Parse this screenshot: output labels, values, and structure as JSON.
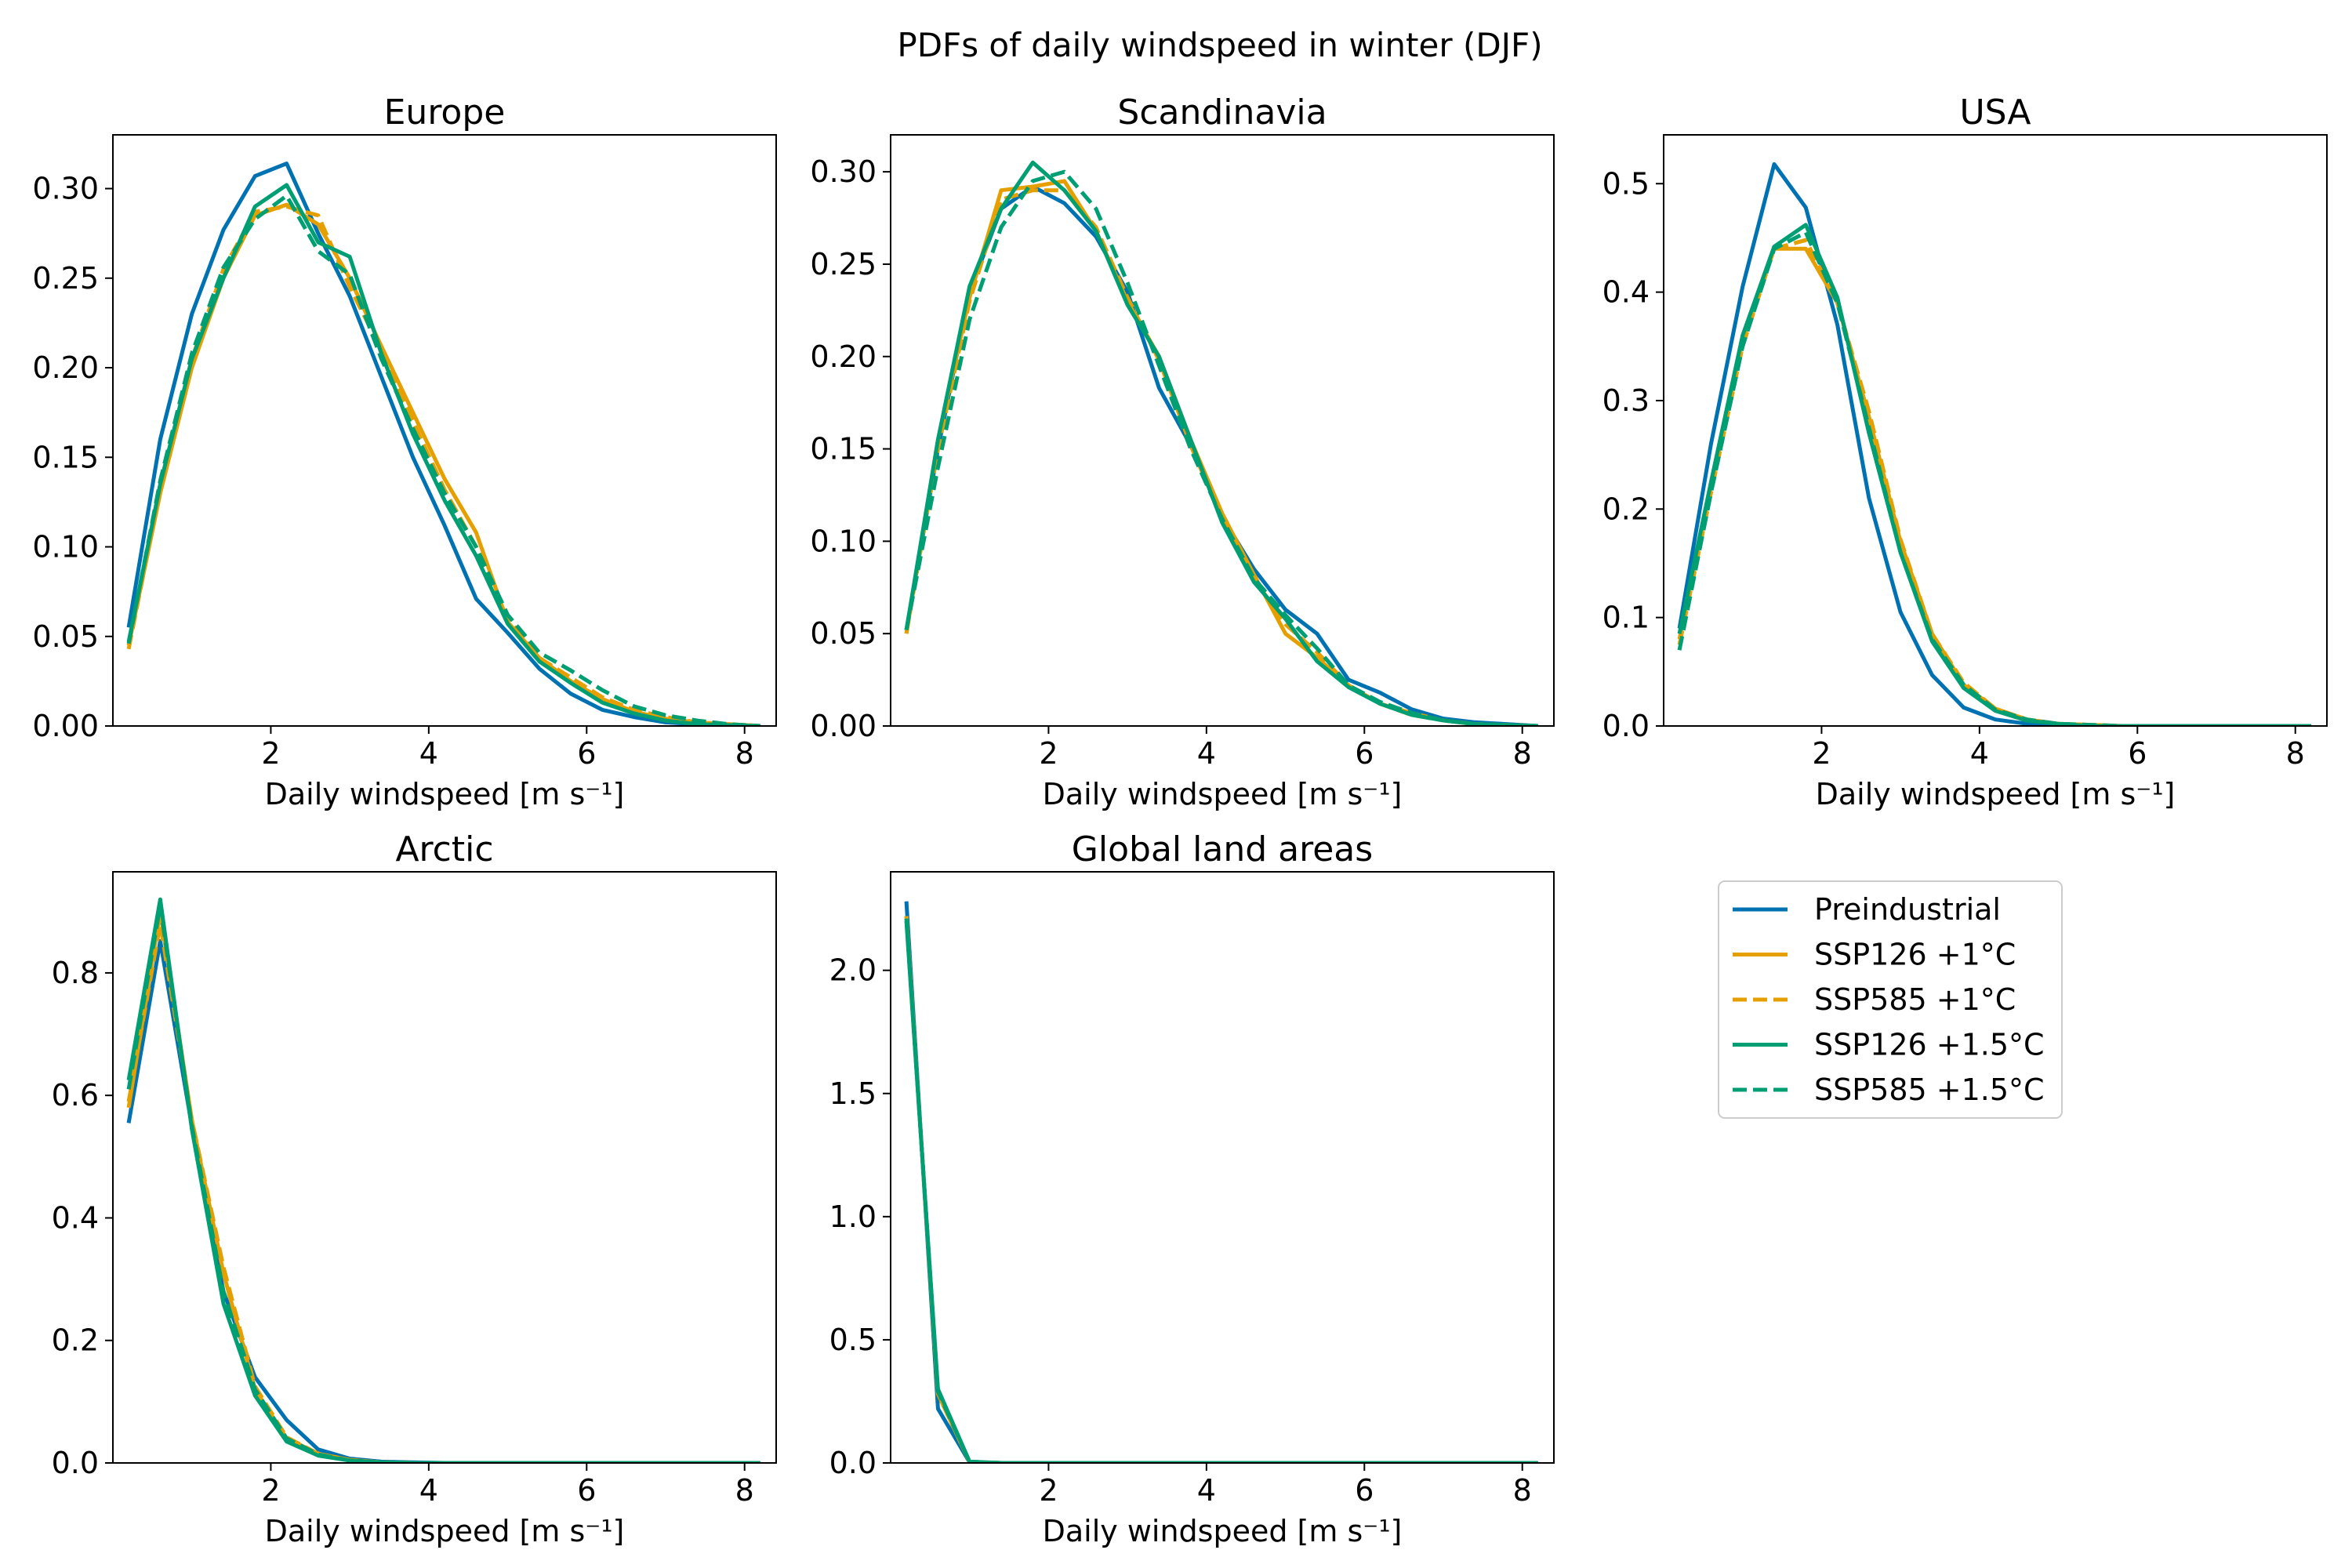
{
  "figure": {
    "title": "PDFs of daily windspeed in winter (DJF)"
  },
  "colors": {
    "preindustrial": "#0072B2",
    "ssp_1c": "#E69F00",
    "ssp_15c": "#009E73"
  },
  "legend": {
    "placement": "right of Global land areas panel",
    "entries": [
      {
        "label": "Preindustrial",
        "color": "#0072B2",
        "dash": "solid"
      },
      {
        "label": "SSP126 +1°C",
        "color": "#E69F00",
        "dash": "solid"
      },
      {
        "label": "SSP585 +1°C",
        "color": "#E69F00",
        "dash": "dashed"
      },
      {
        "label": "SSP126 +1.5°C",
        "color": "#009E73",
        "dash": "solid"
      },
      {
        "label": "SSP585 +1.5°C",
        "color": "#009E73",
        "dash": "dashed"
      }
    ]
  },
  "chart_data": [
    {
      "type": "line",
      "title": "Europe",
      "xlabel": "Daily windspeed [m s⁻¹]",
      "ylabel": "",
      "xlim": [
        0,
        8.4
      ],
      "ylim": [
        0,
        0.33
      ],
      "xticks": [
        2,
        4,
        6,
        8
      ],
      "yticks": [
        0.0,
        0.05,
        0.1,
        0.15,
        0.2,
        0.25,
        0.3
      ],
      "ytick_labels": [
        "0.00",
        "0.05",
        "0.10",
        "0.15",
        "0.20",
        "0.25",
        "0.30"
      ],
      "x": [
        0.2,
        0.6,
        1.0,
        1.4,
        1.8,
        2.2,
        2.6,
        3.0,
        3.4,
        3.8,
        4.2,
        4.6,
        5.0,
        5.4,
        5.8,
        6.2,
        6.6,
        7.0,
        7.4,
        7.8,
        8.2
      ],
      "series": [
        {
          "name": "Preindustrial",
          "values": [
            0.055,
            0.16,
            0.23,
            0.277,
            0.307,
            0.314,
            0.275,
            0.24,
            0.195,
            0.15,
            0.112,
            0.071,
            0.052,
            0.032,
            0.018,
            0.009,
            0.005,
            0.002,
            0.001,
            0.0005,
            0.0
          ]
        },
        {
          "name": "SSP126 +1°C",
          "values": [
            0.045,
            0.13,
            0.2,
            0.25,
            0.285,
            0.291,
            0.28,
            0.25,
            0.212,
            0.175,
            0.138,
            0.108,
            0.058,
            0.038,
            0.025,
            0.015,
            0.008,
            0.004,
            0.002,
            0.001,
            0.0
          ]
        },
        {
          "name": "SSP585 +1°C",
          "values": [
            0.043,
            0.132,
            0.205,
            0.255,
            0.287,
            0.29,
            0.285,
            0.245,
            0.21,
            0.17,
            0.132,
            0.1,
            0.06,
            0.038,
            0.027,
            0.016,
            0.009,
            0.005,
            0.002,
            0.001,
            0.0
          ]
        },
        {
          "name": "SSP126 +1.5°C",
          "values": [
            0.047,
            0.135,
            0.205,
            0.25,
            0.29,
            0.302,
            0.27,
            0.262,
            0.208,
            0.163,
            0.126,
            0.095,
            0.057,
            0.036,
            0.024,
            0.013,
            0.007,
            0.003,
            0.001,
            0.0005,
            0.0
          ]
        },
        {
          "name": "SSP585 +1.5°C",
          "values": [
            0.046,
            0.137,
            0.208,
            0.256,
            0.283,
            0.296,
            0.265,
            0.252,
            0.205,
            0.166,
            0.13,
            0.1,
            0.062,
            0.041,
            0.031,
            0.02,
            0.011,
            0.006,
            0.003,
            0.001,
            0.0
          ]
        }
      ]
    },
    {
      "type": "line",
      "title": "Scandinavia",
      "xlabel": "Daily windspeed [m s⁻¹]",
      "ylabel": "",
      "xlim": [
        0,
        8.4
      ],
      "ylim": [
        0,
        0.32
      ],
      "xticks": [
        2,
        4,
        6,
        8
      ],
      "yticks": [
        0.0,
        0.05,
        0.1,
        0.15,
        0.2,
        0.25,
        0.3
      ],
      "ytick_labels": [
        "0.00",
        "0.05",
        "0.10",
        "0.15",
        "0.20",
        "0.25",
        "0.30"
      ],
      "x": [
        0.2,
        0.6,
        1.0,
        1.4,
        1.8,
        2.2,
        2.6,
        3.0,
        3.4,
        3.8,
        4.2,
        4.6,
        5.0,
        5.4,
        5.8,
        6.2,
        6.6,
        7.0,
        7.4,
        7.8,
        8.2
      ],
      "series": [
        {
          "name": "Preindustrial",
          "values": [
            0.052,
            0.15,
            0.235,
            0.28,
            0.292,
            0.283,
            0.265,
            0.235,
            0.183,
            0.152,
            0.113,
            0.085,
            0.063,
            0.05,
            0.025,
            0.018,
            0.009,
            0.004,
            0.002,
            0.001,
            0.0
          ]
        },
        {
          "name": "SSP126 +1°C",
          "values": [
            0.05,
            0.155,
            0.232,
            0.29,
            0.292,
            0.295,
            0.268,
            0.23,
            0.2,
            0.155,
            0.115,
            0.082,
            0.05,
            0.037,
            0.022,
            0.012,
            0.007,
            0.003,
            0.001,
            0.0005,
            0.0
          ]
        },
        {
          "name": "SSP585 +1°C",
          "values": [
            0.05,
            0.15,
            0.23,
            0.285,
            0.29,
            0.29,
            0.27,
            0.232,
            0.198,
            0.152,
            0.112,
            0.08,
            0.055,
            0.04,
            0.022,
            0.012,
            0.006,
            0.003,
            0.001,
            0.0005,
            0.0
          ]
        },
        {
          "name": "SSP126 +1.5°C",
          "values": [
            0.052,
            0.155,
            0.238,
            0.28,
            0.305,
            0.29,
            0.268,
            0.228,
            0.2,
            0.155,
            0.11,
            0.078,
            0.058,
            0.035,
            0.021,
            0.012,
            0.006,
            0.003,
            0.001,
            0.0005,
            0.0
          ]
        },
        {
          "name": "SSP585 +1.5°C",
          "values": [
            0.052,
            0.14,
            0.22,
            0.27,
            0.295,
            0.3,
            0.28,
            0.24,
            0.195,
            0.15,
            0.112,
            0.08,
            0.06,
            0.042,
            0.022,
            0.013,
            0.007,
            0.003,
            0.001,
            0.0005,
            0.0
          ]
        }
      ]
    },
    {
      "type": "line",
      "title": "USA",
      "xlabel": "Daily windspeed [m s⁻¹]",
      "ylabel": "",
      "xlim": [
        0,
        8.4
      ],
      "ylim": [
        0,
        0.545
      ],
      "xticks": [
        2,
        4,
        6,
        8
      ],
      "yticks": [
        0.0,
        0.1,
        0.2,
        0.3,
        0.4,
        0.5
      ],
      "ytick_labels": [
        "0.0",
        "0.1",
        "0.2",
        "0.3",
        "0.4",
        "0.5"
      ],
      "x": [
        0.2,
        0.6,
        1.0,
        1.4,
        1.8,
        2.2,
        2.6,
        3.0,
        3.4,
        3.8,
        4.2,
        4.6,
        5.0,
        5.4,
        5.8,
        6.2,
        6.6,
        7.0,
        7.4,
        7.8,
        8.2
      ],
      "series": [
        {
          "name": "Preindustrial",
          "values": [
            0.09,
            0.26,
            0.405,
            0.518,
            0.478,
            0.37,
            0.21,
            0.105,
            0.047,
            0.017,
            0.006,
            0.002,
            0.001,
            0.0,
            0.0,
            0.0,
            0.0,
            0.0,
            0.0,
            0.0,
            0.0
          ]
        },
        {
          "name": "SSP126 +1°C",
          "values": [
            0.08,
            0.22,
            0.355,
            0.44,
            0.44,
            0.39,
            0.285,
            0.17,
            0.085,
            0.038,
            0.016,
            0.006,
            0.002,
            0.001,
            0.0,
            0.0,
            0.0,
            0.0,
            0.0,
            0.0,
            0.0
          ]
        },
        {
          "name": "SSP585 +1°C",
          "values": [
            0.075,
            0.215,
            0.35,
            0.44,
            0.448,
            0.39,
            0.29,
            0.172,
            0.085,
            0.04,
            0.016,
            0.006,
            0.002,
            0.001,
            0.0,
            0.0,
            0.0,
            0.0,
            0.0,
            0.0,
            0.0
          ]
        },
        {
          "name": "SSP126 +1.5°C",
          "values": [
            0.085,
            0.225,
            0.36,
            0.442,
            0.462,
            0.395,
            0.27,
            0.16,
            0.078,
            0.035,
            0.014,
            0.005,
            0.002,
            0.0,
            0.0,
            0.0,
            0.0,
            0.0,
            0.0,
            0.0,
            0.0
          ]
        },
        {
          "name": "SSP585 +1.5°C",
          "values": [
            0.07,
            0.215,
            0.35,
            0.44,
            0.455,
            0.39,
            0.275,
            0.16,
            0.08,
            0.038,
            0.015,
            0.006,
            0.002,
            0.001,
            0.0,
            0.0,
            0.0,
            0.0,
            0.0,
            0.0,
            0.0
          ]
        }
      ]
    },
    {
      "type": "line",
      "title": "Arctic",
      "xlabel": "Daily windspeed [m s⁻¹]",
      "ylabel": "",
      "xlim": [
        0,
        8.4
      ],
      "ylim": [
        0,
        0.965
      ],
      "xticks": [
        2,
        4,
        6,
        8
      ],
      "yticks": [
        0.0,
        0.2,
        0.4,
        0.6,
        0.8
      ],
      "ytick_labels": [
        "0.0",
        "0.2",
        "0.4",
        "0.6",
        "0.8"
      ],
      "x": [
        0.2,
        0.6,
        1.0,
        1.4,
        1.8,
        2.2,
        2.6,
        3.0,
        3.4,
        3.8,
        4.2,
        4.6,
        5.0,
        5.4,
        5.8,
        6.2,
        6.6,
        7.0,
        7.4,
        7.8,
        8.2
      ],
      "series": [
        {
          "name": "Preindustrial",
          "values": [
            0.555,
            0.852,
            0.55,
            0.28,
            0.14,
            0.07,
            0.022,
            0.007,
            0.002,
            0.001,
            0.0,
            0.0,
            0.0,
            0.0,
            0.0,
            0.0,
            0.0,
            0.0,
            0.0,
            0.0,
            0.0
          ]
        },
        {
          "name": "SSP126 +1°C",
          "values": [
            0.58,
            0.9,
            0.56,
            0.31,
            0.12,
            0.04,
            0.015,
            0.005,
            0.001,
            0.0,
            0.0,
            0.0,
            0.0,
            0.0,
            0.0,
            0.0,
            0.0,
            0.0,
            0.0,
            0.0,
            0.0
          ]
        },
        {
          "name": "SSP585 +1°C",
          "values": [
            0.59,
            0.88,
            0.56,
            0.32,
            0.125,
            0.042,
            0.015,
            0.005,
            0.001,
            0.0,
            0.0,
            0.0,
            0.0,
            0.0,
            0.0,
            0.0,
            0.0,
            0.0,
            0.0,
            0.0,
            0.0
          ]
        },
        {
          "name": "SSP126 +1.5°C",
          "values": [
            0.625,
            0.92,
            0.545,
            0.26,
            0.11,
            0.035,
            0.012,
            0.004,
            0.001,
            0.0,
            0.0,
            0.0,
            0.0,
            0.0,
            0.0,
            0.0,
            0.0,
            0.0,
            0.0,
            0.0,
            0.0
          ]
        },
        {
          "name": "SSP585 +1.5°C",
          "values": [
            0.61,
            0.91,
            0.55,
            0.28,
            0.12,
            0.04,
            0.014,
            0.004,
            0.001,
            0.0,
            0.0,
            0.0,
            0.0,
            0.0,
            0.0,
            0.0,
            0.0,
            0.0,
            0.0,
            0.0,
            0.0
          ]
        }
      ]
    },
    {
      "type": "line",
      "title": "Global land areas",
      "xlabel": "Daily windspeed [m s⁻¹]",
      "ylabel": "",
      "xlim": [
        0,
        8.4
      ],
      "ylim": [
        0,
        2.4
      ],
      "xticks": [
        2,
        4,
        6,
        8
      ],
      "yticks": [
        0.0,
        0.5,
        1.0,
        1.5,
        2.0
      ],
      "ytick_labels": [
        "0.0",
        "0.5",
        "1.0",
        "1.5",
        "2.0"
      ],
      "x": [
        0.2,
        0.6,
        1.0,
        1.4,
        1.8,
        2.2,
        2.6,
        3.0,
        3.4,
        3.8,
        4.2,
        4.6,
        5.0,
        5.4,
        5.8,
        6.2,
        6.6,
        7.0,
        7.4,
        7.8,
        8.2
      ],
      "series": [
        {
          "name": "Preindustrial",
          "values": [
            2.28,
            0.22,
            0.003,
            0.0,
            0.0,
            0.0,
            0.0,
            0.0,
            0.0,
            0.0,
            0.0,
            0.0,
            0.0,
            0.0,
            0.0,
            0.0,
            0.0,
            0.0,
            0.0,
            0.0,
            0.0
          ]
        },
        {
          "name": "SSP126 +1°C",
          "values": [
            2.22,
            0.28,
            0.004,
            0.0,
            0.0,
            0.0,
            0.0,
            0.0,
            0.0,
            0.0,
            0.0,
            0.0,
            0.0,
            0.0,
            0.0,
            0.0,
            0.0,
            0.0,
            0.0,
            0.0,
            0.0
          ]
        },
        {
          "name": "SSP585 +1°C",
          "values": [
            2.22,
            0.28,
            0.004,
            0.0,
            0.0,
            0.0,
            0.0,
            0.0,
            0.0,
            0.0,
            0.0,
            0.0,
            0.0,
            0.0,
            0.0,
            0.0,
            0.0,
            0.0,
            0.0,
            0.0,
            0.0
          ]
        },
        {
          "name": "SSP126 +1.5°C",
          "values": [
            2.2,
            0.3,
            0.005,
            0.0,
            0.0,
            0.0,
            0.0,
            0.0,
            0.0,
            0.0,
            0.0,
            0.0,
            0.0,
            0.0,
            0.0,
            0.0,
            0.0,
            0.0,
            0.0,
            0.0,
            0.0
          ]
        },
        {
          "name": "SSP585 +1.5°C",
          "values": [
            2.21,
            0.29,
            0.005,
            0.0,
            0.0,
            0.0,
            0.0,
            0.0,
            0.0,
            0.0,
            0.0,
            0.0,
            0.0,
            0.0,
            0.0,
            0.0,
            0.0,
            0.0,
            0.0,
            0.0,
            0.0
          ]
        }
      ]
    }
  ]
}
